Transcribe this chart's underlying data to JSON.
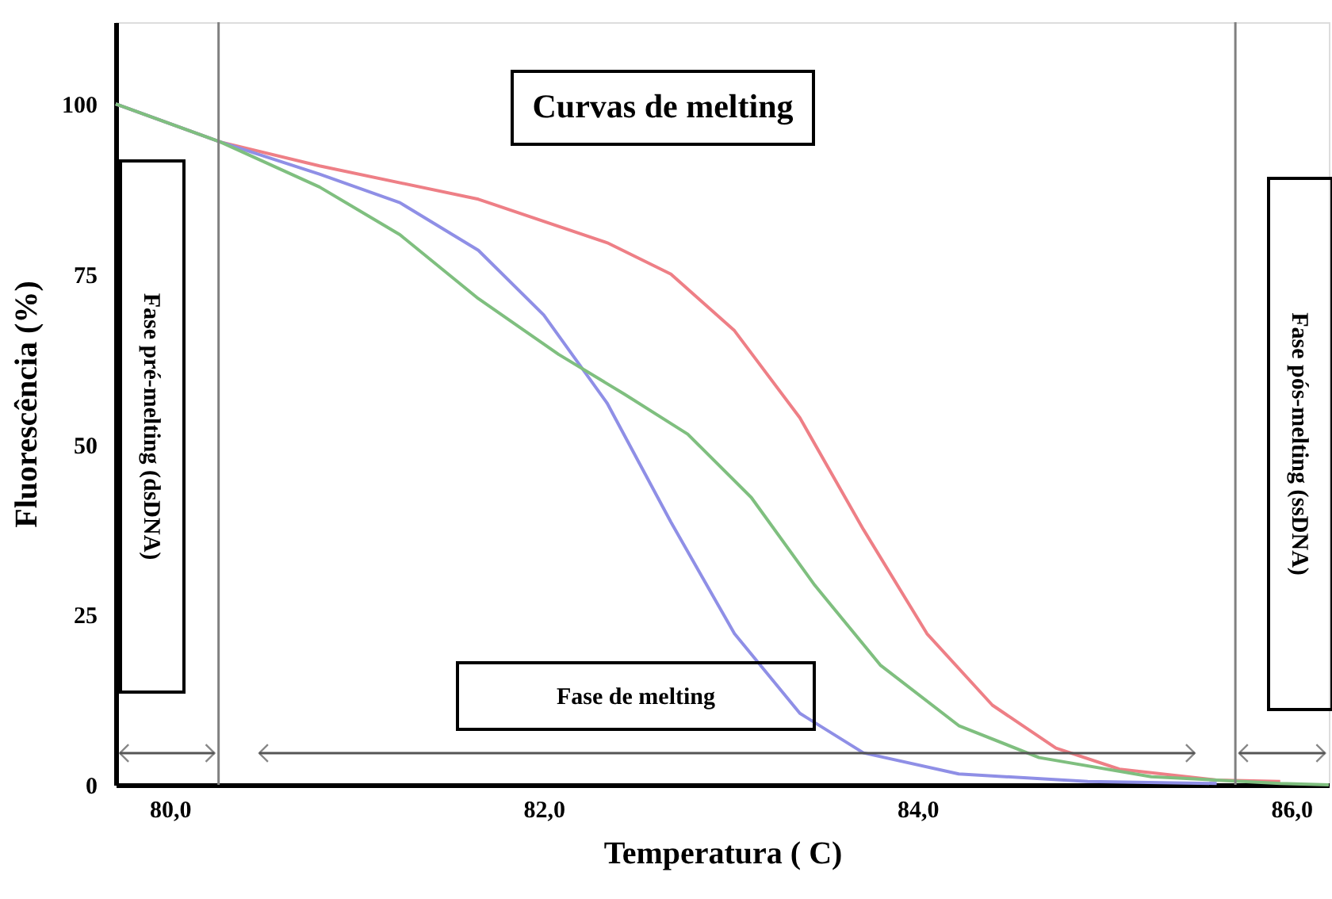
{
  "chart_data": {
    "type": "line",
    "title": "Curvas de melting",
    "xlabel": "Temperatura ( C)",
    "ylabel": "Fluorescência (%)",
    "xlim": [
      79.71,
      86.2
    ],
    "ylim": [
      0,
      112
    ],
    "xticks": [
      {
        "value": 80,
        "label": "80,0"
      },
      {
        "value": 82,
        "label": "82,0"
      },
      {
        "value": 84,
        "label": "84,0"
      },
      {
        "value": 86,
        "label": "86,0"
      }
    ],
    "yticks": [
      0,
      25,
      50,
      75,
      100
    ],
    "grid": false,
    "marker": "none",
    "line_style": "solid",
    "ref_lines": [
      {
        "axis": "x",
        "value": 80.26,
        "color": "#808080"
      },
      {
        "axis": "x",
        "value": 85.7,
        "color": "#808080"
      }
    ],
    "annotations": [
      "Fase pré-melting (dsDNA)",
      "Fase de melting",
      "Fase pós-melting (ssDNA)"
    ],
    "series": [
      {
        "color": "#ee7f86",
        "x": [
          79.71,
          80.27,
          80.8,
          81.65,
          82.34,
          82.68,
          83.02,
          83.37,
          83.71,
          84.05,
          84.4,
          84.74,
          85.08,
          85.6,
          85.94
        ],
        "values": [
          100,
          94.4,
          90.9,
          86,
          79.6,
          75,
          66.7,
          53.9,
          37.5,
          22.2,
          11.7,
          5.4,
          2.3,
          0.7,
          0.5
        ]
      },
      {
        "color": "#8f8fe6",
        "x": [
          79.71,
          80.27,
          80.8,
          81.23,
          81.65,
          82,
          82.34,
          82.68,
          83.02,
          83.37,
          83.71,
          84.22,
          84.91,
          85.6
        ],
        "values": [
          100,
          94.4,
          89.7,
          85.5,
          78.5,
          69,
          56,
          38.6,
          22.2,
          10.5,
          4.7,
          1.6,
          0.5,
          0.2
        ]
      },
      {
        "color": "#7fbf7f",
        "x": [
          79.71,
          80.27,
          80.8,
          81.23,
          81.65,
          82.08,
          82.43,
          82.77,
          83.11,
          83.45,
          83.8,
          84.22,
          84.65,
          85.25,
          85.94,
          86.2
        ],
        "values": [
          100,
          94.4,
          87.8,
          80.8,
          71.4,
          63.2,
          57.4,
          51.5,
          42.2,
          29.3,
          17.6,
          8.7,
          4,
          1.2,
          0.2,
          0
        ]
      }
    ]
  }
}
